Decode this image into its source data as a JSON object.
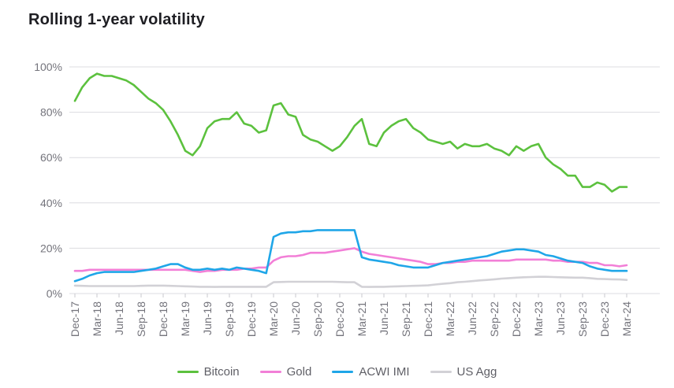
{
  "title": "Rolling 1-year volatility",
  "chart_data": {
    "type": "line",
    "title": "Rolling 1-year volatility",
    "xlabel": "",
    "ylabel": "",
    "ylim": [
      0,
      100
    ],
    "grid": "horizontal",
    "legend_position": "bottom",
    "frequency": "monthly",
    "y_ticks": [
      "0%",
      "20%",
      "40%",
      "60%",
      "80%",
      "100%"
    ],
    "x_tick_labels": [
      "Dec-17",
      "Mar-18",
      "Jun-18",
      "Sep-18",
      "Dec-18",
      "Mar-19",
      "Jun-19",
      "Sep-19",
      "Dec-19",
      "Mar-20",
      "Jun-20",
      "Sep-20",
      "Dec-20",
      "Mar-21",
      "Jun-21",
      "Sep-21",
      "Dec-21",
      "Mar-22",
      "Jun-22",
      "Sep-22",
      "Dec-22",
      "Mar-23",
      "Jun-23",
      "Sep-23",
      "Dec-23",
      "Mar-24"
    ],
    "x": [
      "Dec-17",
      "Jan-18",
      "Feb-18",
      "Mar-18",
      "Apr-18",
      "May-18",
      "Jun-18",
      "Jul-18",
      "Aug-18",
      "Sep-18",
      "Oct-18",
      "Nov-18",
      "Dec-18",
      "Jan-19",
      "Feb-19",
      "Mar-19",
      "Apr-19",
      "May-19",
      "Jun-19",
      "Jul-19",
      "Aug-19",
      "Sep-19",
      "Oct-19",
      "Nov-19",
      "Dec-19",
      "Jan-20",
      "Feb-20",
      "Mar-20",
      "Apr-20",
      "May-20",
      "Jun-20",
      "Jul-20",
      "Aug-20",
      "Sep-20",
      "Oct-20",
      "Nov-20",
      "Dec-20",
      "Jan-21",
      "Feb-21",
      "Mar-21",
      "Apr-21",
      "May-21",
      "Jun-21",
      "Jul-21",
      "Aug-21",
      "Sep-21",
      "Oct-21",
      "Nov-21",
      "Dec-21",
      "Jan-22",
      "Feb-22",
      "Mar-22",
      "Apr-22",
      "May-22",
      "Jun-22",
      "Jul-22",
      "Aug-22",
      "Sep-22",
      "Oct-22",
      "Nov-22",
      "Dec-22",
      "Jan-23",
      "Feb-23",
      "Mar-23",
      "Apr-23",
      "May-23",
      "Jun-23",
      "Jul-23",
      "Aug-23",
      "Sep-23",
      "Oct-23",
      "Nov-23",
      "Dec-23",
      "Jan-24",
      "Feb-24",
      "Mar-24"
    ],
    "series": [
      {
        "name": "Bitcoin",
        "color": "#5cc13e",
        "values": [
          85,
          91,
          95,
          97,
          96,
          96,
          95,
          94,
          92,
          89,
          86,
          84,
          81,
          76,
          70,
          63,
          61,
          65,
          73,
          76,
          77,
          77,
          80,
          75,
          74,
          71,
          72,
          83,
          84,
          79,
          78,
          70,
          68,
          67,
          65,
          63,
          65,
          69,
          74,
          77,
          66,
          65,
          71,
          74,
          76,
          77,
          73,
          71,
          68,
          67,
          66,
          67,
          64,
          66,
          65,
          65,
          66,
          64,
          63,
          61,
          65,
          63,
          65,
          66,
          60,
          57,
          55,
          52,
          52,
          47,
          47,
          49,
          48,
          45,
          47,
          47
        ]
      },
      {
        "name": "Gold",
        "color": "#f27fd7",
        "values": [
          10,
          10,
          10.5,
          10.5,
          10.5,
          10.5,
          10.5,
          10.5,
          10.5,
          10.5,
          10.5,
          10.5,
          10.5,
          10.5,
          10.5,
          10.5,
          10,
          9.5,
          10,
          10,
          10.5,
          10.5,
          10.5,
          11,
          11,
          11.5,
          11.5,
          14.5,
          16,
          16.5,
          16.5,
          17,
          18,
          18,
          18,
          18.5,
          19,
          19.5,
          20,
          18.5,
          17.5,
          17,
          16.5,
          16,
          15.5,
          15,
          14.5,
          14,
          13,
          13,
          13.5,
          13.5,
          14,
          14,
          14.5,
          14.5,
          14.5,
          14.5,
          14.5,
          14.5,
          15,
          15,
          15,
          15,
          15,
          14.5,
          14.5,
          14,
          14,
          14,
          13.5,
          13.5,
          12.5,
          12.5,
          12,
          12.5
        ]
      },
      {
        "name": "ACWI IMI",
        "color": "#1fa6e8",
        "values": [
          5.5,
          6.5,
          8,
          9,
          9.5,
          9.5,
          9.5,
          9.5,
          9.5,
          10,
          10.5,
          11,
          12,
          13,
          13,
          11.5,
          10.5,
          10.5,
          11,
          10.5,
          11,
          10.5,
          11.5,
          11,
          10.5,
          10,
          9,
          25,
          26.5,
          27,
          27,
          27.5,
          27.5,
          28,
          28,
          28,
          28,
          28,
          28,
          16,
          15,
          14.5,
          14,
          13.5,
          12.5,
          12,
          11.5,
          11.5,
          11.5,
          12.5,
          13.5,
          14,
          14.5,
          15,
          15.5,
          16,
          16.5,
          17.5,
          18.5,
          19,
          19.5,
          19.5,
          19,
          18.5,
          17,
          16.5,
          15.5,
          14.5,
          14,
          13.5,
          12,
          11,
          10.5,
          10,
          10,
          10
        ]
      },
      {
        "name": "US Agg",
        "color": "#d2d1d6",
        "values": [
          3.5,
          3.4,
          3.3,
          3.3,
          3.3,
          3.3,
          3.3,
          3.3,
          3.3,
          3.4,
          3.5,
          3.5,
          3.5,
          3.4,
          3.3,
          3.2,
          3.1,
          3,
          3,
          2.9,
          3,
          3,
          3,
          3,
          3,
          3,
          3,
          5,
          5.1,
          5.2,
          5.2,
          5.2,
          5.2,
          5.2,
          5.2,
          5.2,
          5.1,
          5,
          5,
          3,
          2.9,
          3,
          3,
          3.1,
          3.2,
          3.3,
          3.4,
          3.5,
          3.6,
          4,
          4.3,
          4.6,
          5,
          5.2,
          5.5,
          5.8,
          6,
          6.3,
          6.6,
          6.8,
          7,
          7.2,
          7.3,
          7.4,
          7.4,
          7.3,
          7.2,
          7.1,
          7,
          7,
          6.8,
          6.5,
          6.4,
          6.3,
          6.2,
          6
        ]
      }
    ],
    "style": {
      "gridline_color": "#dcdce0",
      "tick_color": "#c9c9cf",
      "axis_label_color": "#74747c",
      "title_color": "#1e1e23",
      "legend_text_color": "#5f5f66",
      "background": "#ffffff"
    }
  }
}
